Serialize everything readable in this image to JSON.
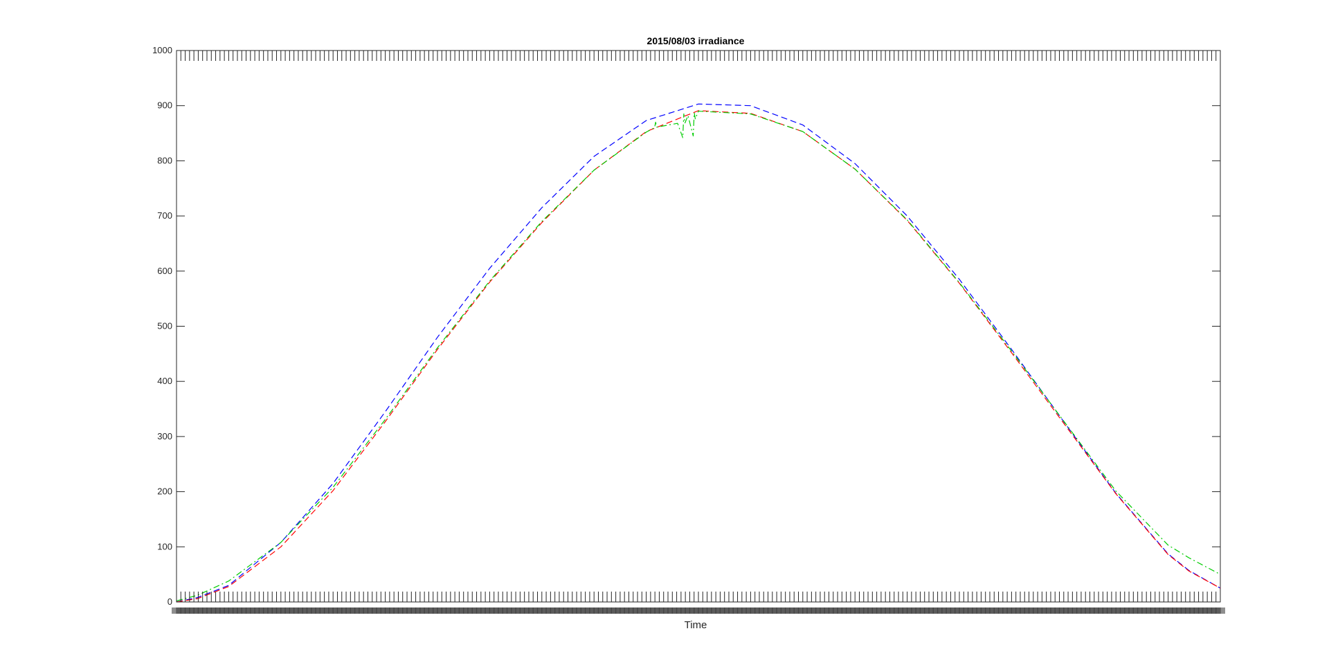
{
  "chart_data": {
    "type": "line",
    "title": "2015/08/03 irradiance",
    "xlabel": "Time",
    "ylabel": "",
    "xlim": [
      0,
      1
    ],
    "ylim": [
      0,
      1000
    ],
    "yticks": [
      0,
      100,
      200,
      300,
      400,
      500,
      600,
      700,
      800,
      900,
      1000
    ],
    "ytick_labels": [
      "0",
      "100",
      "200",
      "300",
      "400",
      "500",
      "600",
      "700",
      "800",
      "900",
      "1000"
    ],
    "grid": false,
    "legend": "none",
    "series": [
      {
        "color": "#0000ff",
        "style": "dashed",
        "x": [
          0.0,
          0.02,
          0.05,
          0.1,
          0.15,
          0.2,
          0.25,
          0.3,
          0.35,
          0.4,
          0.45,
          0.5,
          0.55,
          0.6,
          0.65,
          0.7,
          0.75,
          0.8,
          0.85,
          0.9,
          0.95,
          0.97,
          1.0
        ],
        "y": [
          0,
          8,
          30,
          108,
          215,
          345,
          480,
          605,
          715,
          808,
          873,
          903,
          900,
          865,
          795,
          700,
          585,
          458,
          327,
          197,
          87,
          57,
          25
        ]
      },
      {
        "color": "#ff0000",
        "style": "dashed",
        "x": [
          0.0,
          0.02,
          0.05,
          0.1,
          0.15,
          0.2,
          0.25,
          0.3,
          0.35,
          0.4,
          0.45,
          0.5,
          0.55,
          0.6,
          0.65,
          0.7,
          0.75,
          0.8,
          0.85,
          0.9,
          0.95,
          0.97,
          1.0
        ],
        "y": [
          0,
          6,
          28,
          100,
          202,
          327,
          458,
          580,
          688,
          783,
          853,
          891,
          886,
          853,
          785,
          692,
          578,
          452,
          324,
          196,
          86,
          56,
          25
        ]
      },
      {
        "color": "#00cc00",
        "style": "dashdot",
        "x": [
          0.0,
          0.02,
          0.05,
          0.1,
          0.15,
          0.2,
          0.25,
          0.3,
          0.35,
          0.4,
          0.45,
          0.458,
          0.459,
          0.46,
          0.48,
          0.485,
          0.486,
          0.487,
          0.49,
          0.495,
          0.496,
          0.497,
          0.5,
          0.55,
          0.6,
          0.65,
          0.7,
          0.75,
          0.8,
          0.85,
          0.9,
          0.95,
          0.97,
          1.0
        ],
        "y": [
          2,
          12,
          38,
          108,
          208,
          331,
          461,
          582,
          690,
          783,
          852,
          860,
          870,
          861,
          868,
          842,
          885,
          868,
          882,
          845,
          887,
          876,
          890,
          885,
          853,
          785,
          693,
          579,
          455,
          328,
          201,
          103,
          80,
          50
        ]
      }
    ]
  }
}
